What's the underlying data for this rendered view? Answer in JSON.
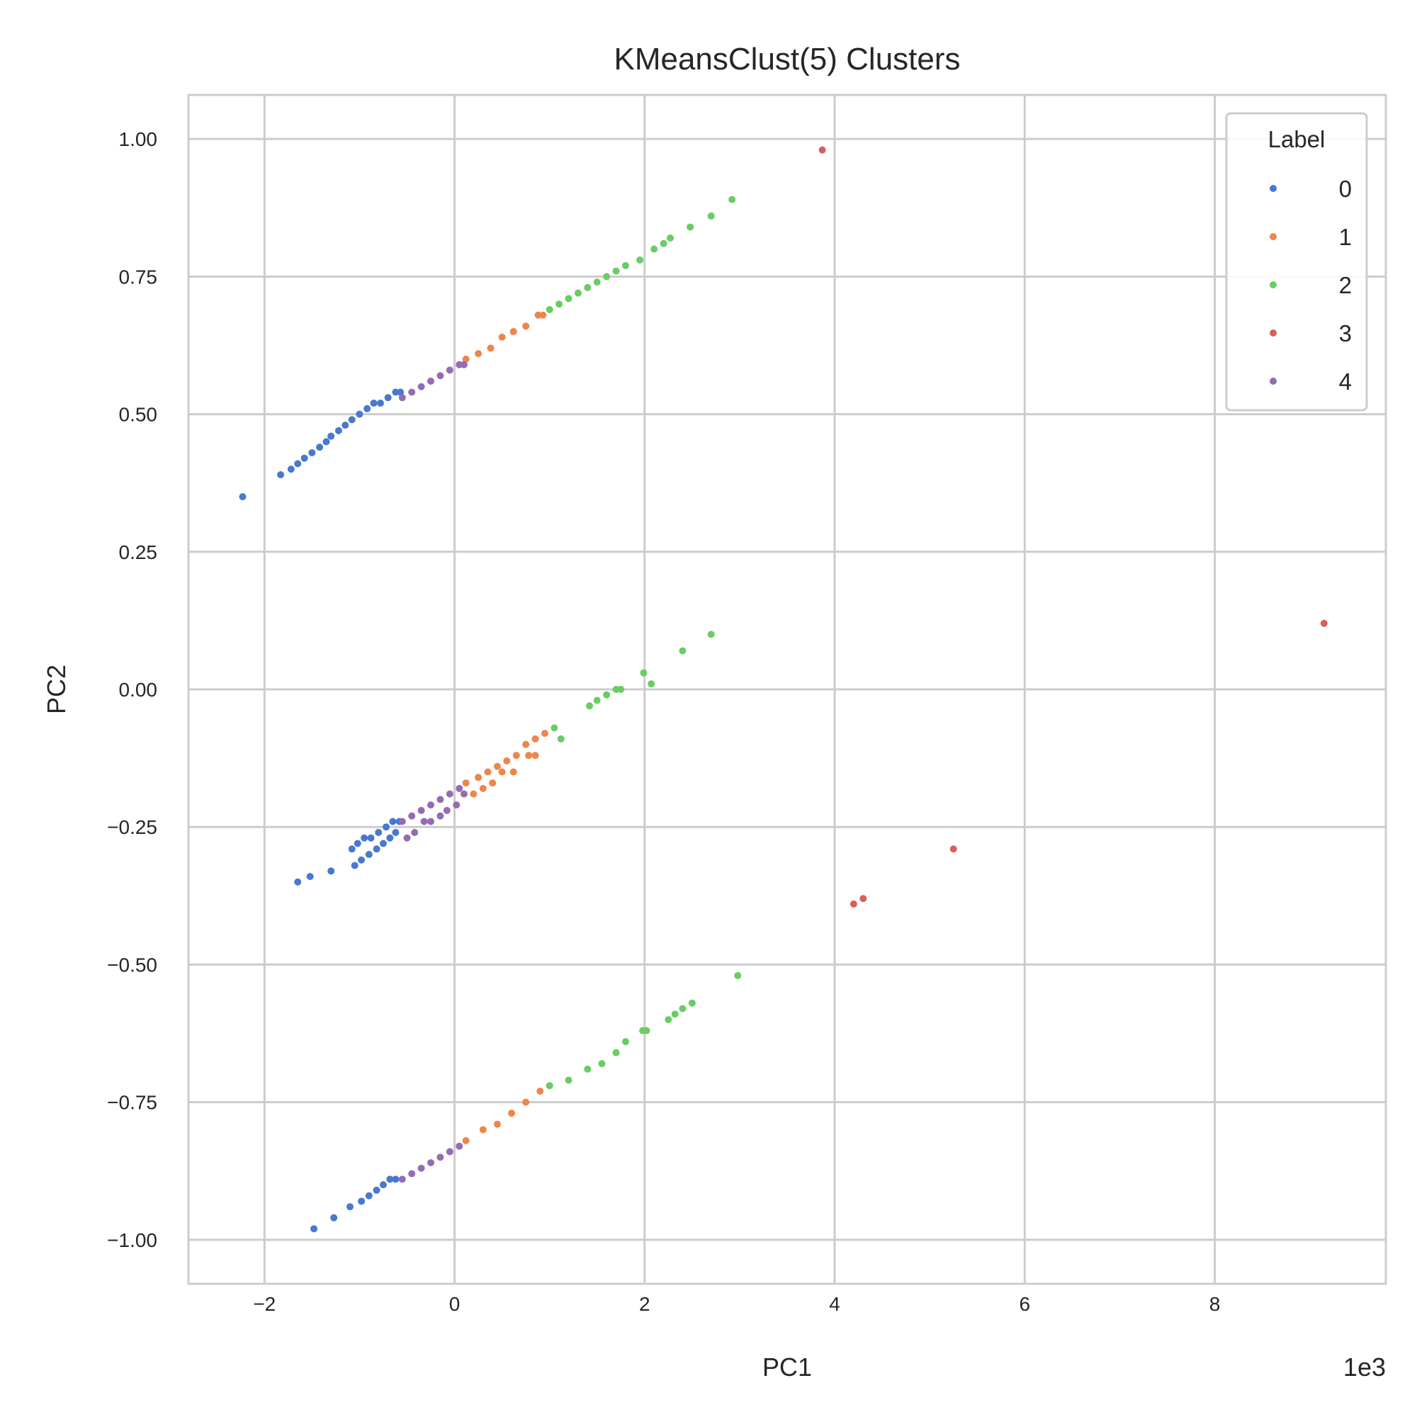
{
  "chart_data": {
    "type": "scatter",
    "title": "KMeansClust(5) Clusters",
    "xlabel": "PC1",
    "ylabel": "PC2",
    "x_offset_label": "1e3",
    "xlim": [
      -2.8,
      9.8
    ],
    "ylim": [
      -1.08,
      1.08
    ],
    "xticks": [
      -2,
      0,
      2,
      4,
      6,
      8
    ],
    "xtick_labels": [
      "−2",
      "0",
      "2",
      "4",
      "6",
      "8"
    ],
    "yticks": [
      1.0,
      0.75,
      0.5,
      0.25,
      0.0,
      -0.25,
      -0.5,
      -0.75,
      -1.0
    ],
    "ytick_labels": [
      "1.00",
      "0.75",
      "0.50",
      "0.25",
      "0.00",
      "−0.25",
      "−0.50",
      "−0.75",
      "−1.00"
    ],
    "grid": true,
    "legend": {
      "title": "Label",
      "placement": "top-right"
    },
    "series": [
      {
        "name": "0",
        "color": "#4878d0",
        "x": [
          -2.23,
          -1.83,
          -1.72,
          -1.65,
          -1.58,
          -1.5,
          -1.42,
          -1.35,
          -1.3,
          -1.22,
          -1.15,
          -1.08,
          -1.0,
          -0.92,
          -0.85,
          -0.78,
          -0.7,
          -0.62,
          -0.57,
          -1.65,
          -1.52,
          -1.3,
          -1.08,
          -1.02,
          -0.95,
          -0.88,
          -0.8,
          -0.72,
          -0.65,
          -0.58,
          -1.05,
          -0.98,
          -0.9,
          -0.82,
          -0.75,
          -0.68,
          -0.62,
          -1.48,
          -1.27,
          -1.1,
          -0.98,
          -0.9,
          -0.82,
          -0.75,
          -0.68,
          -0.62
        ],
        "y": [
          0.35,
          0.39,
          0.4,
          0.41,
          0.42,
          0.43,
          0.44,
          0.45,
          0.46,
          0.47,
          0.48,
          0.49,
          0.5,
          0.51,
          0.52,
          0.52,
          0.53,
          0.54,
          0.54,
          -0.35,
          -0.34,
          -0.33,
          -0.29,
          -0.28,
          -0.27,
          -0.27,
          -0.26,
          -0.25,
          -0.24,
          -0.24,
          -0.32,
          -0.31,
          -0.3,
          -0.29,
          -0.28,
          -0.27,
          -0.26,
          -0.98,
          -0.96,
          -0.94,
          -0.93,
          -0.92,
          -0.91,
          -0.9,
          -0.89,
          -0.89
        ]
      },
      {
        "name": "1",
        "color": "#ee854a",
        "x": [
          0.12,
          0.25,
          0.38,
          0.5,
          0.62,
          0.75,
          0.88,
          0.93,
          0.12,
          0.25,
          0.35,
          0.45,
          0.55,
          0.65,
          0.75,
          0.85,
          0.95,
          0.2,
          0.3,
          0.4,
          0.5,
          0.62,
          0.78,
          0.85,
          0.12,
          0.3,
          0.45,
          0.6,
          0.75,
          0.9
        ],
        "y": [
          0.6,
          0.61,
          0.62,
          0.64,
          0.65,
          0.66,
          0.68,
          0.68,
          -0.17,
          -0.16,
          -0.15,
          -0.14,
          -0.13,
          -0.12,
          -0.1,
          -0.09,
          -0.08,
          -0.19,
          -0.18,
          -0.17,
          -0.15,
          -0.15,
          -0.12,
          -0.12,
          -0.82,
          -0.8,
          -0.79,
          -0.77,
          -0.75,
          -0.73
        ]
      },
      {
        "name": "2",
        "color": "#6acc64",
        "x": [
          1.0,
          1.1,
          1.2,
          1.3,
          1.4,
          1.5,
          1.6,
          1.7,
          1.8,
          1.95,
          2.1,
          2.2,
          2.27,
          2.48,
          2.7,
          2.92,
          1.05,
          1.12,
          1.42,
          1.5,
          1.6,
          1.7,
          1.75,
          1.99,
          2.07,
          2.4,
          2.7,
          1.0,
          1.2,
          1.4,
          1.55,
          1.7,
          1.8,
          1.98,
          2.02,
          2.25,
          2.32,
          2.4,
          2.5,
          2.98
        ],
        "y": [
          0.69,
          0.7,
          0.71,
          0.72,
          0.73,
          0.74,
          0.75,
          0.76,
          0.77,
          0.78,
          0.8,
          0.81,
          0.82,
          0.84,
          0.86,
          0.89,
          -0.07,
          -0.09,
          -0.03,
          -0.02,
          -0.01,
          0.0,
          0.0,
          0.03,
          0.01,
          0.07,
          0.1,
          -0.72,
          -0.71,
          -0.69,
          -0.68,
          -0.66,
          -0.64,
          -0.62,
          -0.62,
          -0.6,
          -0.59,
          -0.58,
          -0.57,
          -0.52
        ]
      },
      {
        "name": "3",
        "color": "#d65f5f",
        "x": [
          3.87,
          9.15,
          5.25,
          4.3,
          4.2
        ],
        "y": [
          0.98,
          0.12,
          -0.29,
          -0.38,
          -0.39
        ]
      },
      {
        "name": "4",
        "color": "#956cb4",
        "x": [
          -0.55,
          -0.45,
          -0.35,
          -0.25,
          -0.15,
          -0.05,
          0.05,
          0.1,
          -0.55,
          -0.45,
          -0.35,
          -0.25,
          -0.15,
          -0.05,
          0.05,
          -0.5,
          -0.42,
          -0.32,
          -0.25,
          -0.15,
          -0.08,
          0.02,
          0.1,
          -0.55,
          -0.45,
          -0.35,
          -0.25,
          -0.15,
          -0.05,
          0.05
        ],
        "y": [
          0.53,
          0.54,
          0.55,
          0.56,
          0.57,
          0.58,
          0.59,
          0.59,
          -0.24,
          -0.23,
          -0.22,
          -0.21,
          -0.2,
          -0.19,
          -0.18,
          -0.27,
          -0.26,
          -0.24,
          -0.24,
          -0.23,
          -0.22,
          -0.21,
          -0.19,
          -0.89,
          -0.88,
          -0.87,
          -0.86,
          -0.85,
          -0.84,
          -0.83
        ]
      }
    ]
  }
}
